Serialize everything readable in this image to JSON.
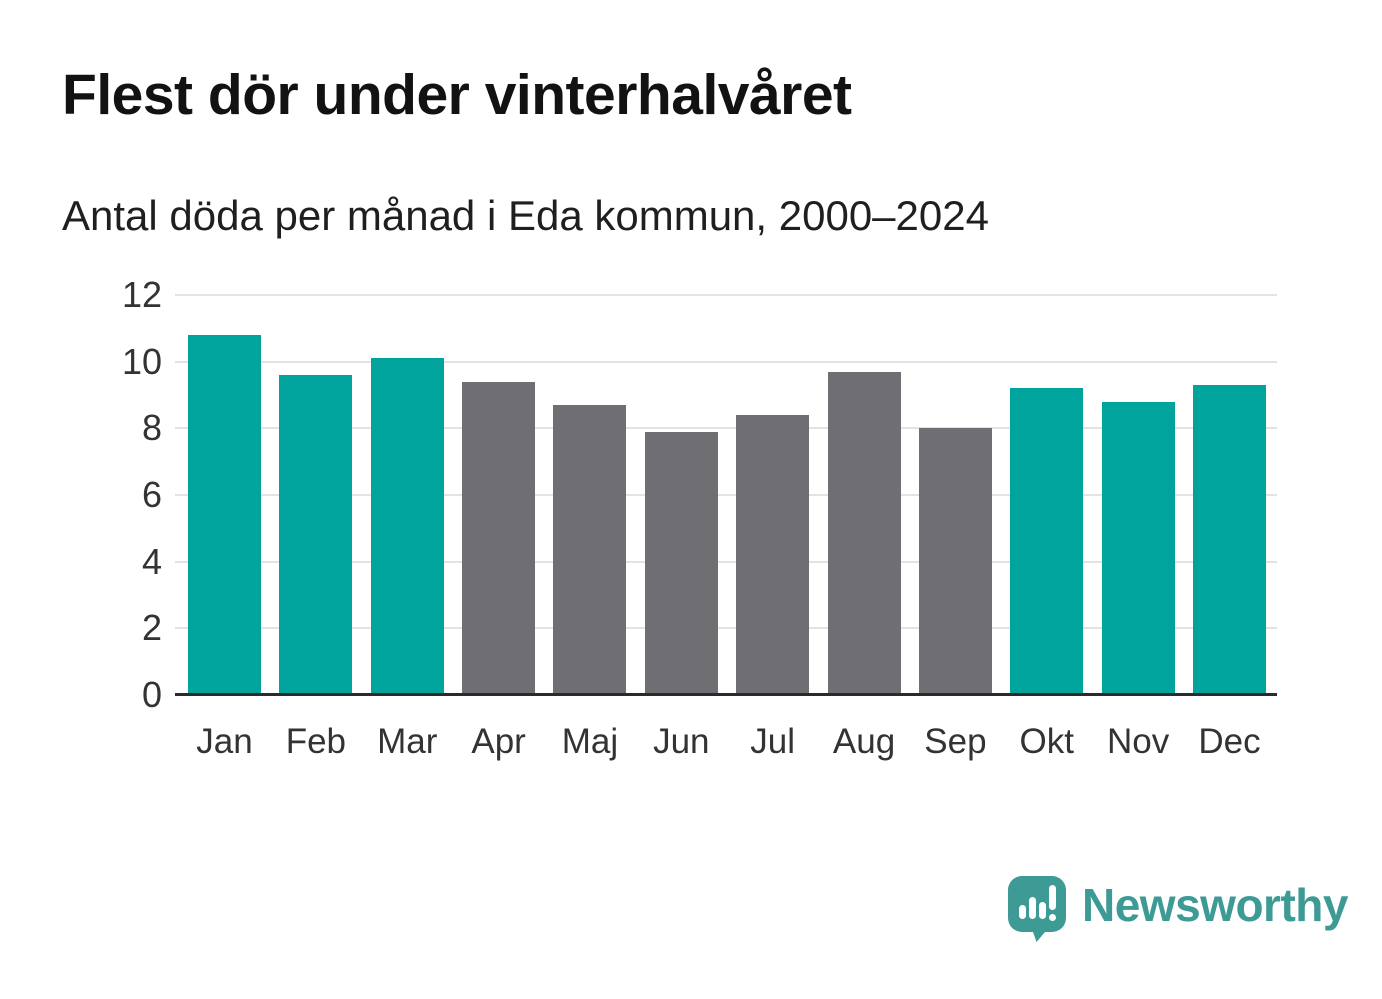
{
  "header": {
    "title": "Flest dör under vinterhalvåret",
    "subtitle": "Antal döda per månad i Eda kommun, 2000–2024"
  },
  "chart_data": {
    "type": "bar",
    "title": "Flest dör under vinterhalvåret",
    "subtitle": "Antal döda per månad i Eda kommun, 2000–2024",
    "categories": [
      "Jan",
      "Feb",
      "Mar",
      "Apr",
      "Maj",
      "Jun",
      "Jul",
      "Aug",
      "Sep",
      "Okt",
      "Nov",
      "Dec"
    ],
    "values": [
      10.8,
      9.6,
      10.1,
      9.4,
      8.7,
      7.9,
      8.4,
      9.7,
      8.0,
      9.2,
      8.8,
      9.3
    ],
    "bar_color_keys": [
      "winter",
      "winter",
      "winter",
      "summer",
      "summer",
      "summer",
      "summer",
      "summer",
      "summer",
      "winter",
      "winter",
      "winter"
    ],
    "colors": {
      "winter": "#00a49c",
      "summer": "#6e6e73",
      "grid": "#e3e3e3",
      "axis_line": "#2b2b2b",
      "tick_text": "#333333"
    },
    "xlabel": "",
    "ylabel": "",
    "ylim": [
      0,
      12
    ],
    "yticks": [
      0,
      2,
      4,
      6,
      8,
      10,
      12
    ],
    "grid": true,
    "legend": false
  },
  "footer": {
    "brand": "Newsworthy",
    "brand_color": "#3d9a94",
    "logo_icon": "bar-chart-speech-bubble-icon"
  }
}
